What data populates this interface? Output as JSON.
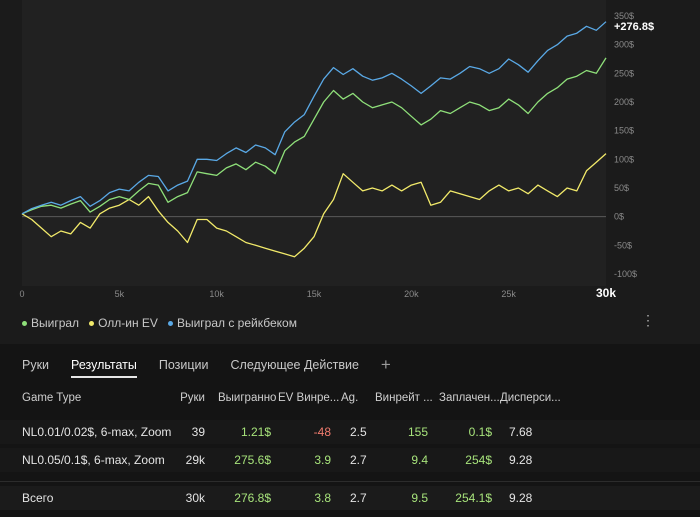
{
  "chart_data": {
    "type": "line",
    "x_ticks": [
      "0",
      "5k",
      "10k",
      "15k",
      "20k",
      "25k",
      "30k"
    ],
    "x_tick_values": [
      0,
      5000,
      10000,
      15000,
      20000,
      25000,
      30000
    ],
    "xlim": [
      0,
      30000
    ],
    "y_ticks": [
      "350$",
      "300$",
      "250$",
      "200$",
      "150$",
      "100$",
      "50$",
      "0$",
      "-50$",
      "-100$"
    ],
    "y_tick_values": [
      350,
      300,
      250,
      200,
      150,
      100,
      50,
      0,
      -50,
      -100
    ],
    "ylim": [
      -100,
      350
    ],
    "grid": "horizontal-zero-line",
    "end_label": "+276.8$",
    "series": [
      {
        "name": "Выиграл",
        "color": "#8fe07a",
        "x": [
          0,
          500,
          1000,
          1500,
          2000,
          2500,
          3000,
          3500,
          4000,
          4500,
          5000,
          5500,
          6000,
          6500,
          7000,
          7500,
          8000,
          8500,
          9000,
          9500,
          10000,
          10500,
          11000,
          11500,
          12000,
          12500,
          13000,
          13500,
          14000,
          14500,
          15000,
          15500,
          16000,
          16500,
          17000,
          17500,
          18000,
          18500,
          19000,
          19500,
          20000,
          20500,
          21000,
          21500,
          22000,
          22500,
          23000,
          23500,
          24000,
          24500,
          25000,
          25500,
          26000,
          26500,
          27000,
          27500,
          28000,
          28500,
          29000,
          29500,
          30000
        ],
        "y": [
          5,
          12,
          18,
          20,
          15,
          22,
          28,
          8,
          18,
          30,
          35,
          30,
          45,
          58,
          55,
          25,
          35,
          42,
          78,
          75,
          72,
          85,
          92,
          82,
          95,
          88,
          75,
          115,
          130,
          140,
          170,
          200,
          220,
          205,
          215,
          200,
          190,
          195,
          200,
          190,
          175,
          160,
          170,
          185,
          180,
          190,
          200,
          195,
          185,
          190,
          205,
          195,
          180,
          200,
          215,
          225,
          240,
          245,
          255,
          250,
          277
        ]
      },
      {
        "name": "Олл-ин EV",
        "color": "#f2ea6a",
        "x": [
          0,
          500,
          1000,
          1500,
          2000,
          2500,
          3000,
          3500,
          4000,
          4500,
          5000,
          5500,
          6000,
          6500,
          7000,
          7500,
          8000,
          8500,
          9000,
          9500,
          10000,
          10500,
          11000,
          11500,
          12000,
          12500,
          13000,
          13500,
          14000,
          14500,
          15000,
          15500,
          16000,
          16500,
          17000,
          17500,
          18000,
          18500,
          19000,
          19500,
          20000,
          20500,
          21000,
          21500,
          22000,
          22500,
          23000,
          23500,
          24000,
          24500,
          25000,
          25500,
          26000,
          26500,
          27000,
          27500,
          28000,
          28500,
          29000,
          29500,
          30000
        ],
        "y": [
          5,
          -5,
          -20,
          -35,
          -25,
          -30,
          -10,
          -20,
          5,
          15,
          20,
          30,
          20,
          35,
          10,
          -10,
          -25,
          -45,
          -5,
          -5,
          -20,
          -25,
          -35,
          -45,
          -50,
          -55,
          -60,
          -65,
          -70,
          -55,
          -35,
          5,
          30,
          75,
          60,
          45,
          50,
          45,
          55,
          45,
          55,
          60,
          20,
          25,
          45,
          40,
          35,
          30,
          45,
          55,
          45,
          50,
          40,
          55,
          45,
          35,
          50,
          45,
          80,
          95,
          110
        ]
      },
      {
        "name": "Выиграл с рейкбеком",
        "color": "#5aa9e6",
        "x": [
          0,
          500,
          1000,
          1500,
          2000,
          2500,
          3000,
          3500,
          4000,
          4500,
          5000,
          5500,
          6000,
          6500,
          7000,
          7500,
          8000,
          8500,
          9000,
          9500,
          10000,
          10500,
          11000,
          11500,
          12000,
          12500,
          13000,
          13500,
          14000,
          14500,
          15000,
          15500,
          16000,
          16500,
          17000,
          17500,
          18000,
          18500,
          19000,
          19500,
          20000,
          20500,
          21000,
          21500,
          22000,
          22500,
          23000,
          23500,
          24000,
          24500,
          25000,
          25500,
          26000,
          26500,
          27000,
          27500,
          28000,
          28500,
          29000,
          29500,
          30000
        ],
        "y": [
          5,
          14,
          20,
          25,
          20,
          28,
          35,
          18,
          28,
          42,
          48,
          45,
          60,
          72,
          70,
          45,
          55,
          62,
          100,
          100,
          98,
          110,
          120,
          112,
          125,
          120,
          108,
          148,
          165,
          178,
          210,
          240,
          260,
          248,
          258,
          245,
          238,
          242,
          250,
          240,
          228,
          215,
          228,
          242,
          240,
          250,
          262,
          258,
          250,
          258,
          275,
          265,
          252,
          272,
          290,
          300,
          315,
          320,
          332,
          325,
          340
        ]
      }
    ]
  },
  "legend": {
    "items": [
      {
        "label": "Выиграл",
        "color": "#8fe07a"
      },
      {
        "label": "Олл-ин EV",
        "color": "#f2ea6a"
      },
      {
        "label": "Выиграл с рейкбеком",
        "color": "#5aa9e6"
      }
    ]
  },
  "tabs": {
    "items": [
      "Руки",
      "Результаты",
      "Позиции",
      "Следующее Действие"
    ],
    "active_index": 1,
    "add_label": "+"
  },
  "table": {
    "headers": [
      "Game Type",
      "Руки",
      "Выигранно",
      "EV Винре...",
      "Ag.",
      "Винрейт ...",
      "Заплачен...",
      "Дисперси..."
    ],
    "rows": [
      [
        "NL0.01/0.02$, 6-max, Zoom",
        "39",
        "1.21$",
        "-48",
        "2.5",
        "155",
        "0.1$",
        "7.68"
      ],
      [
        "NL0.05/0.1$, 6-max, Zoom",
        "29k",
        "275.6$",
        "3.9",
        "2.7",
        "9.4",
        "254$",
        "9.28"
      ]
    ],
    "total": [
      "Всего",
      "30k",
      "276.8$",
      "3.8",
      "2.7",
      "9.5",
      "254.1$",
      "9.28"
    ]
  }
}
